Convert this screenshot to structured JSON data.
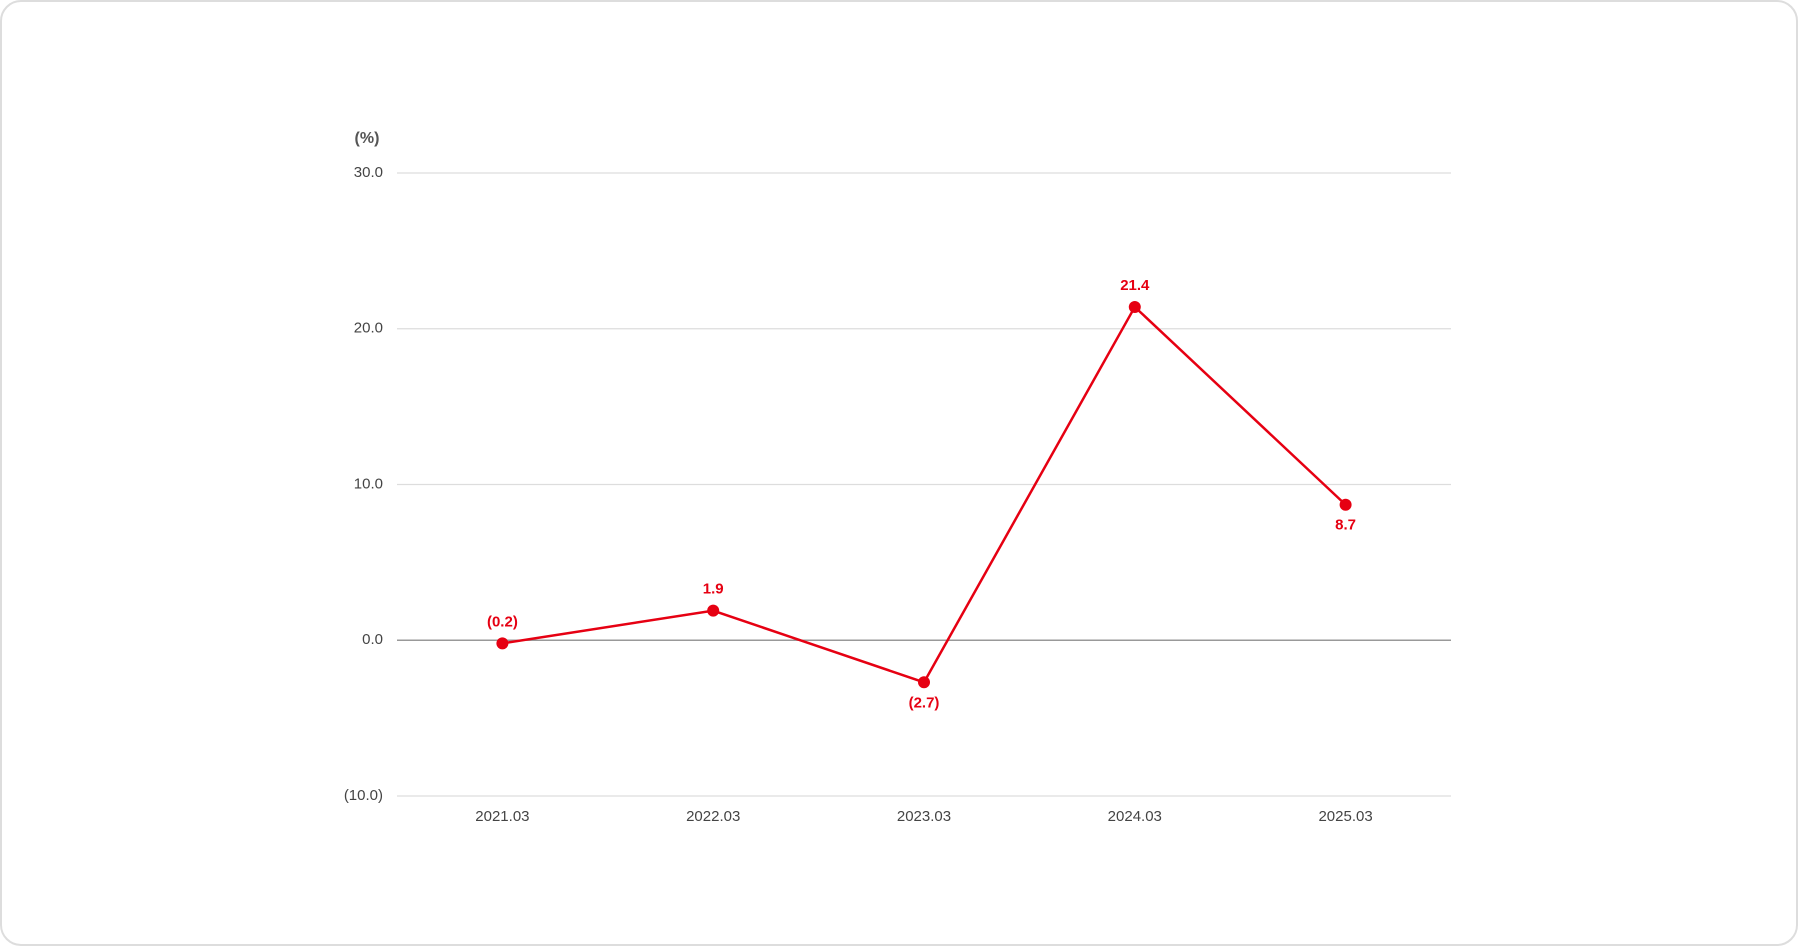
{
  "chart_data": {
    "type": "line",
    "y_axis_label": "(%)",
    "categories": [
      "2021.03",
      "2022.03",
      "2023.03",
      "2024.03",
      "2025.03"
    ],
    "values": [
      -0.2,
      1.9,
      -2.7,
      21.4,
      8.7
    ],
    "value_labels": [
      "(0.2)",
      "1.9",
      "(2.7)",
      "21.4",
      "8.7"
    ],
    "color": "#e60012",
    "ylim": [
      -10,
      30
    ],
    "yticks": [
      {
        "value": -10,
        "label": "(10.0)"
      },
      {
        "value": 0,
        "label": "0.0"
      },
      {
        "value": 10,
        "label": "10.0"
      },
      {
        "value": 20,
        "label": "20.0"
      },
      {
        "value": 30,
        "label": "30.0"
      }
    ],
    "grid": true
  }
}
